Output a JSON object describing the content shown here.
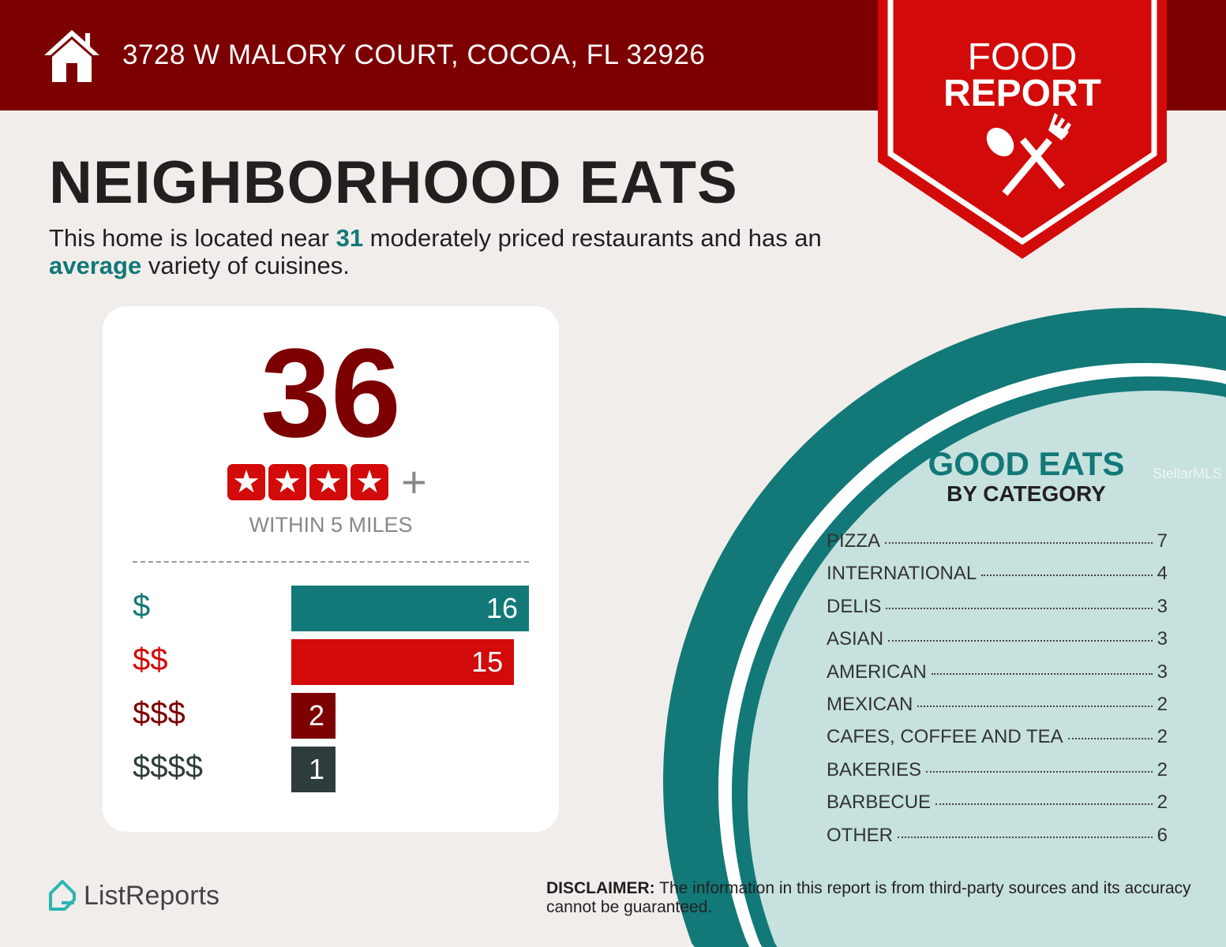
{
  "header": {
    "address": "3728 W MALORY COURT, COCOA, FL 32926",
    "ribbon_line1": "FOOD",
    "ribbon_line2": "REPORT"
  },
  "title": "NEIGHBORHOOD EATS",
  "summary": {
    "part1": "This home is located near ",
    "count": "31",
    "part2": " moderately priced restaurants and has an ",
    "variety": "average",
    "part3": " variety of cuisines."
  },
  "card": {
    "count": "36",
    "stars": 4,
    "star_glyph": "★",
    "plus": "+",
    "within": "WITHIN 5 MILES"
  },
  "price_tiers": [
    {
      "label": "$",
      "value": 16,
      "color": "#127878"
    },
    {
      "label": "$$",
      "value": 15,
      "color": "#d20a0a"
    },
    {
      "label": "$$$",
      "value": 2,
      "color": "#7d0000"
    },
    {
      "label": "$$$$",
      "value": 1,
      "color": "#2f3c3c"
    }
  ],
  "good_eats": {
    "title": "GOOD EATS",
    "subtitle": "BY CATEGORY",
    "categories": [
      {
        "name": "PIZZA",
        "count": "7"
      },
      {
        "name": "INTERNATIONAL",
        "count": "4"
      },
      {
        "name": "DELIS",
        "count": "3"
      },
      {
        "name": "ASIAN",
        "count": "3"
      },
      {
        "name": "AMERICAN",
        "count": "3"
      },
      {
        "name": "MEXICAN",
        "count": "2"
      },
      {
        "name": "CAFES, COFFEE AND TEA",
        "count": "2"
      },
      {
        "name": "BAKERIES",
        "count": "2"
      },
      {
        "name": "BARBECUE",
        "count": "2"
      },
      {
        "name": "OTHER",
        "count": "6"
      }
    ]
  },
  "watermark": "StellarMLS",
  "footer": {
    "logo": "ListReports",
    "disclaimer_label": "DISCLAIMER:",
    "disclaimer_text": " The information in this report is from third-party sources and its accuracy cannot be guaranteed."
  },
  "colors": {
    "dark_red": "#7d0000",
    "red": "#d20a0a",
    "teal": "#127878",
    "light_teal": "#c6e1de"
  }
}
